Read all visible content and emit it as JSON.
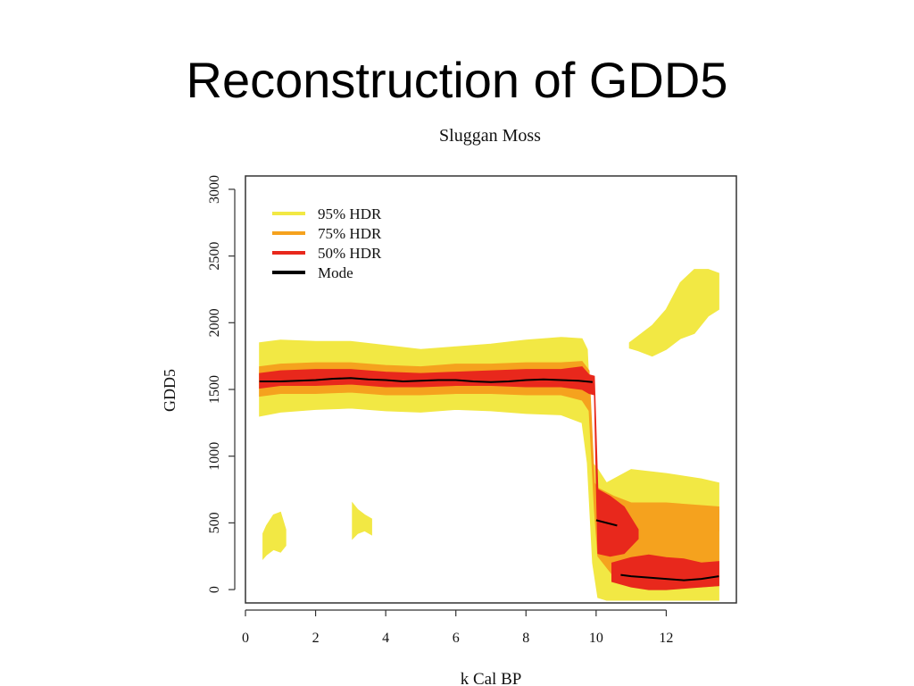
{
  "slide": {
    "title": "Reconstruction of GDD5"
  },
  "chart_data": {
    "type": "area",
    "title": "Sluggan Moss",
    "xlabel": "k Cal BP",
    "ylabel": "GDD5",
    "xlim": [
      0,
      14
    ],
    "ylim": [
      -100,
      3100
    ],
    "x_ticks": [
      0,
      2,
      4,
      6,
      8,
      10,
      12
    ],
    "y_ticks": [
      0,
      500,
      1000,
      1500,
      2000,
      2500,
      3000
    ],
    "legend_position": "top-left",
    "grid": false,
    "colors": {
      "hdr95": "#f2e844",
      "hdr75": "#f5a21e",
      "hdr50": "#e8281c",
      "mode": "#000000"
    },
    "series": [
      {
        "name": "95% HDR",
        "x": [
          0.4,
          1.0,
          2.0,
          3.0,
          4.0,
          5.0,
          6.0,
          7.0,
          8.0,
          9.0,
          9.6,
          9.75,
          9.9,
          10.05,
          10.3,
          11.0,
          12.0,
          13.0,
          13.5
        ],
        "lower": [
          1300,
          1330,
          1350,
          1360,
          1340,
          1330,
          1350,
          1340,
          1320,
          1310,
          1250,
          950,
          200,
          -60,
          -80,
          -80,
          -80,
          -80,
          -80
        ],
        "upper": [
          1850,
          1870,
          1860,
          1860,
          1830,
          1800,
          1820,
          1840,
          1870,
          1890,
          1880,
          1800,
          950,
          900,
          800,
          900,
          870,
          830,
          800
        ]
      },
      {
        "name": "75% HDR",
        "x": [
          0.4,
          1.0,
          2.0,
          3.0,
          4.0,
          5.0,
          6.0,
          7.0,
          8.0,
          9.0,
          9.6,
          9.8,
          9.95,
          10.05,
          10.5,
          11.0,
          11.5,
          12.0,
          13.0,
          13.5
        ],
        "lower": [
          1450,
          1470,
          1470,
          1480,
          1460,
          1460,
          1470,
          1470,
          1460,
          1460,
          1420,
          1340,
          600,
          250,
          100,
          40,
          20,
          20,
          20,
          30
        ],
        "upper": [
          1670,
          1690,
          1700,
          1700,
          1680,
          1670,
          1690,
          1690,
          1700,
          1700,
          1710,
          1640,
          800,
          760,
          700,
          650,
          650,
          650,
          630,
          620
        ]
      },
      {
        "name": "50% HDR",
        "x": [
          0.4,
          1.0,
          2.0,
          3.0,
          4.0,
          5.0,
          6.0,
          7.0,
          8.0,
          9.0,
          9.6,
          9.8,
          9.95,
          10.05,
          10.4,
          10.8,
          11.2
        ],
        "lower": [
          1510,
          1530,
          1530,
          1540,
          1520,
          1520,
          1530,
          1530,
          1520,
          1520,
          1500,
          1470,
          1460,
          270,
          250,
          270,
          380
        ],
        "upper": [
          1620,
          1640,
          1650,
          1650,
          1630,
          1620,
          1630,
          1640,
          1650,
          1650,
          1670,
          1610,
          1600,
          750,
          700,
          620,
          450
        ]
      },
      {
        "name": "Mode",
        "x": [
          0.4,
          1.0,
          1.5,
          2.0,
          2.5,
          3.0,
          3.5,
          4.0,
          4.5,
          5.0,
          5.5,
          6.0,
          6.5,
          7.0,
          7.5,
          8.0,
          8.5,
          9.0,
          9.5,
          9.9,
          10.0,
          10.3,
          10.6,
          10.7,
          11.0,
          11.5,
          12.0,
          12.5,
          13.0,
          13.5
        ],
        "values": [
          1560,
          1560,
          1565,
          1570,
          1580,
          1585,
          1575,
          1570,
          1560,
          1565,
          1570,
          1570,
          1560,
          1555,
          1560,
          1570,
          1575,
          1570,
          1565,
          1555,
          520,
          500,
          480,
          110,
          100,
          90,
          80,
          70,
          80,
          100
        ]
      }
    ],
    "extra_95_regions": [
      {
        "label": "upper 95% HDR patch",
        "x": [
          10.95,
          11.2,
          11.6,
          12.0,
          12.4,
          12.8,
          13.2,
          13.5
        ],
        "lower": [
          1810,
          1790,
          1750,
          1800,
          1880,
          1920,
          2050,
          2100
        ],
        "upper": [
          1850,
          1900,
          1980,
          2100,
          2300,
          2400,
          2400,
          2370
        ]
      }
    ],
    "upper_cluster_75": {
      "x": [
        10.05,
        10.5,
        11.0,
        11.5,
        12.0,
        12.5,
        13.0,
        13.5
      ],
      "lower": [
        380,
        420,
        440,
        450,
        460,
        450,
        440,
        440
      ],
      "upper": [
        600,
        640,
        650,
        630,
        620,
        620,
        610,
        600
      ]
    },
    "lower_cluster_50": {
      "x": [
        10.45,
        11.0,
        11.5,
        12.0,
        12.5,
        13.0,
        13.5
      ],
      "lower": [
        60,
        20,
        0,
        0,
        10,
        20,
        30
      ],
      "upper": [
        200,
        240,
        260,
        240,
        230,
        200,
        210
      ]
    },
    "left_scatter_95": [
      {
        "x": [
          0.5,
          0.6,
          0.8,
          1.0,
          1.15
        ],
        "lower": [
          230,
          260,
          300,
          280,
          330
        ],
        "upper": [
          420,
          480,
          560,
          580,
          450
        ]
      },
      {
        "x": [
          3.05,
          3.2,
          3.4,
          3.6
        ],
        "lower": [
          380,
          420,
          440,
          410
        ],
        "upper": [
          650,
          600,
          560,
          530
        ]
      }
    ]
  }
}
